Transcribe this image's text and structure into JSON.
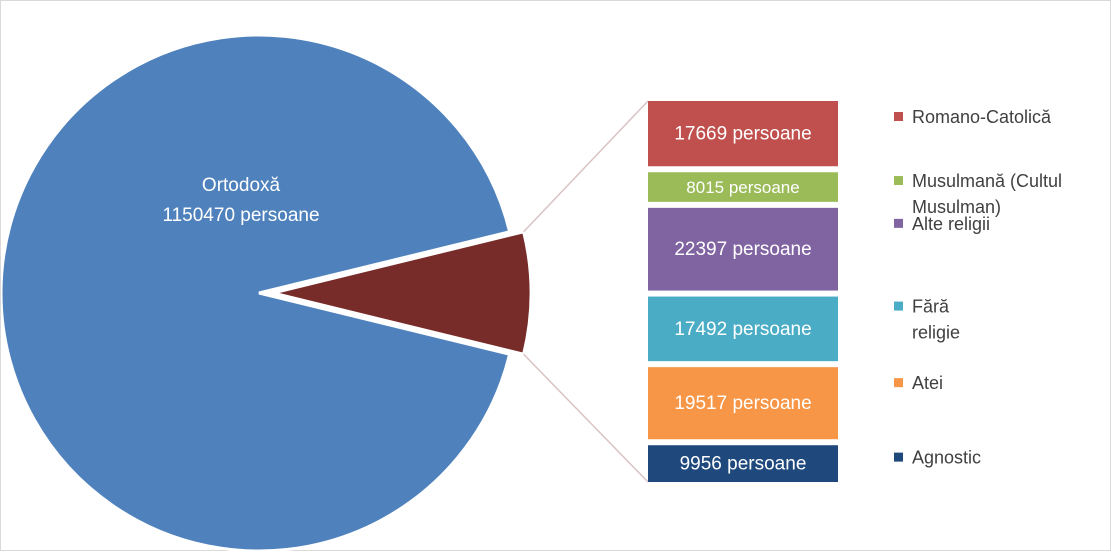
{
  "chart_data": {
    "type": "pie",
    "unit_label": "persoane",
    "main_slice": {
      "label": "Ortodoxă",
      "value": 1150470,
      "value_text": "1150470 persoane",
      "color": "#4f81bd"
    },
    "grouped_slice_color": "#772c2a",
    "breakdown": [
      {
        "label": "Romano-Catolică",
        "value": 17669,
        "value_text": "17669 persoane",
        "color": "#c0504d"
      },
      {
        "label": "Musulmană (Cultul Musulman)",
        "legend_lines": [
          "Musulmană (Cultul",
          "Musulman)"
        ],
        "value": 8015,
        "value_text": "8015 persoane",
        "color": "#9bbb59"
      },
      {
        "label": "Alte religii",
        "value": 22397,
        "value_text": "22397 persoane",
        "color": "#8064a2"
      },
      {
        "label": "Fără religie",
        "legend_lines": [
          "Fără",
          "religie"
        ],
        "value": 17492,
        "value_text": "17492 persoane",
        "color": "#4bacc6"
      },
      {
        "label": "Atei",
        "value": 19517,
        "value_text": "19517 persoane",
        "color": "#f79646"
      },
      {
        "label": "Agnostic",
        "value": 9956,
        "value_text": "9956 persoane",
        "color": "#1f497d"
      }
    ],
    "legend_position": "right"
  }
}
